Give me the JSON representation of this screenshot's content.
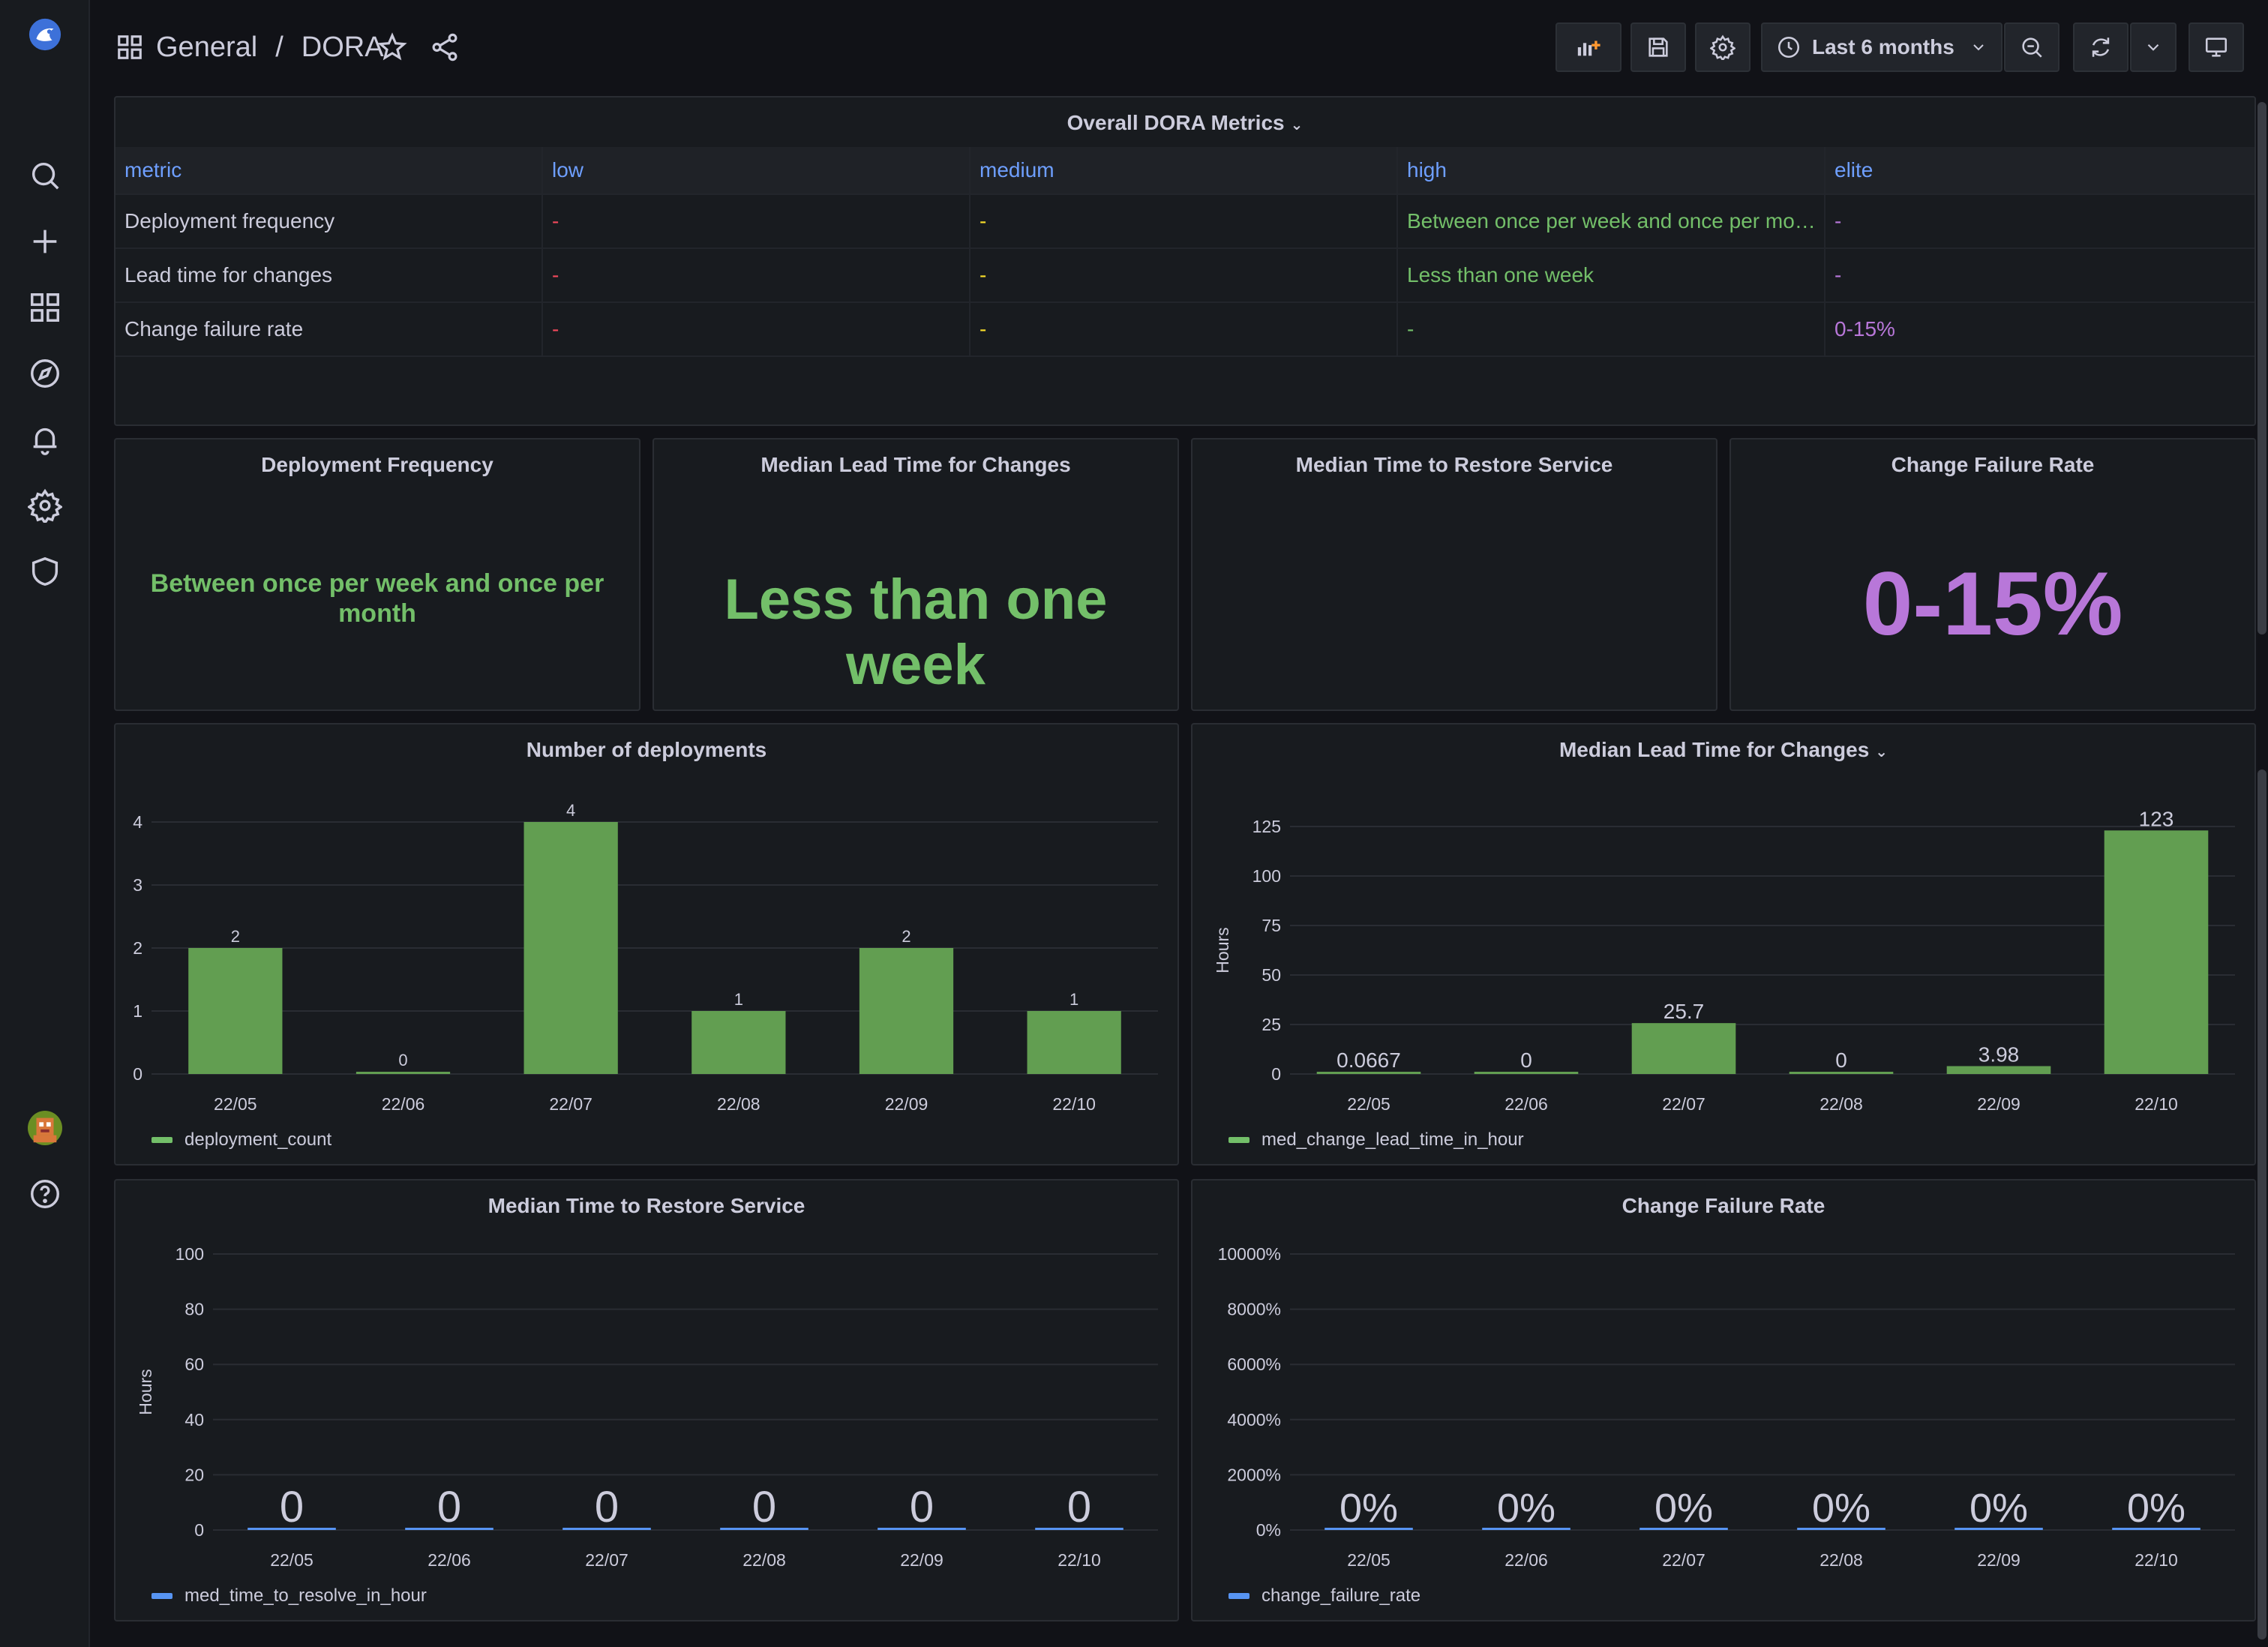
{
  "breadcrumb": {
    "folder": "General",
    "separator": "/",
    "dashboard": "DORA"
  },
  "time_picker": {
    "label": "Last 6 months"
  },
  "colors": {
    "green": "#73bf69",
    "bar_green": "#629e51",
    "red": "#f2495c",
    "yellow": "#fade2a",
    "purple": "#b877d9",
    "blue": "#5794f2"
  },
  "dora_table": {
    "title": "Overall DORA Metrics",
    "columns": [
      "metric",
      "low",
      "medium",
      "high",
      "elite"
    ],
    "rows": [
      [
        "Deployment frequency",
        "-",
        "-",
        "Between once per week and once per mo…",
        "-"
      ],
      [
        "Lead time for changes",
        "-",
        "-",
        "Less than one week",
        "-"
      ],
      [
        "Change failure rate",
        "-",
        "-",
        "-",
        "0-15%"
      ]
    ]
  },
  "stats": {
    "deployment_frequency": {
      "title": "Deployment Frequency",
      "value": "Between once per week and once per month"
    },
    "lead_time": {
      "title": "Median Lead Time for Changes",
      "value": "Less than one week"
    },
    "restore": {
      "title": "Median Time to Restore Service"
    },
    "failure_rate": {
      "title": "Change Failure Rate",
      "value": "0-15%"
    }
  },
  "chart_data": [
    {
      "type": "bar",
      "title": "Number of deployments",
      "categories": [
        "22/05",
        "22/06",
        "22/07",
        "22/08",
        "22/09",
        "22/10"
      ],
      "series": [
        {
          "name": "deployment_count",
          "values": [
            2,
            0,
            4,
            1,
            2,
            1
          ]
        }
      ],
      "data_labels": [
        "2",
        "0",
        "4",
        "1",
        "2",
        "1"
      ],
      "ylim": [
        0,
        4
      ],
      "yticks": [
        "0",
        "1",
        "2",
        "3",
        "4"
      ],
      "ytick_values": [
        0,
        1,
        2,
        3,
        4
      ],
      "ylabel": "",
      "legend": "bottom-left",
      "grid": true
    },
    {
      "type": "bar",
      "title": "Median Lead Time for Changes",
      "categories": [
        "22/05",
        "22/06",
        "22/07",
        "22/08",
        "22/09",
        "22/10"
      ],
      "series": [
        {
          "name": "med_change_lead_time_in_hour",
          "values": [
            0.0667,
            0,
            25.7,
            0,
            3.98,
            123
          ]
        }
      ],
      "data_labels": [
        "0.0667",
        "0",
        "25.7",
        "0",
        "3.98",
        "123"
      ],
      "ylim": [
        0,
        125
      ],
      "yticks": [
        "0",
        "25",
        "50",
        "75",
        "100",
        "125"
      ],
      "ytick_values": [
        0,
        25,
        50,
        75,
        100,
        125
      ],
      "ylabel": "Hours",
      "legend": "bottom-left",
      "grid": true
    },
    {
      "type": "bar",
      "title": "Median Time to Restore Service",
      "categories": [
        "22/05",
        "22/06",
        "22/07",
        "22/08",
        "22/09",
        "22/10"
      ],
      "series": [
        {
          "name": "med_time_to_resolve_in_hour",
          "values": [
            0,
            0,
            0,
            0,
            0,
            0
          ]
        }
      ],
      "data_labels": [
        "0",
        "0",
        "0",
        "0",
        "0",
        "0"
      ],
      "ylim": [
        0,
        100
      ],
      "yticks": [
        "0",
        "20",
        "40",
        "60",
        "80",
        "100"
      ],
      "ytick_values": [
        0,
        20,
        40,
        60,
        80,
        100
      ],
      "ylabel": "Hours",
      "legend": "bottom-left",
      "grid": true
    },
    {
      "type": "bar",
      "title": "Change Failure Rate",
      "categories": [
        "22/05",
        "22/06",
        "22/07",
        "22/08",
        "22/09",
        "22/10"
      ],
      "series": [
        {
          "name": "change_failure_rate",
          "values": [
            0,
            0,
            0,
            0,
            0,
            0
          ]
        }
      ],
      "data_labels": [
        "0%",
        "0%",
        "0%",
        "0%",
        "0%",
        "0%"
      ],
      "ylim": [
        0,
        10000
      ],
      "yticks": [
        "0%",
        "2000%",
        "4000%",
        "6000%",
        "8000%",
        "10000%"
      ],
      "ytick_values": [
        0,
        2000,
        4000,
        6000,
        8000,
        10000
      ],
      "ylabel": "",
      "legend": "bottom-left",
      "grid": true
    }
  ]
}
